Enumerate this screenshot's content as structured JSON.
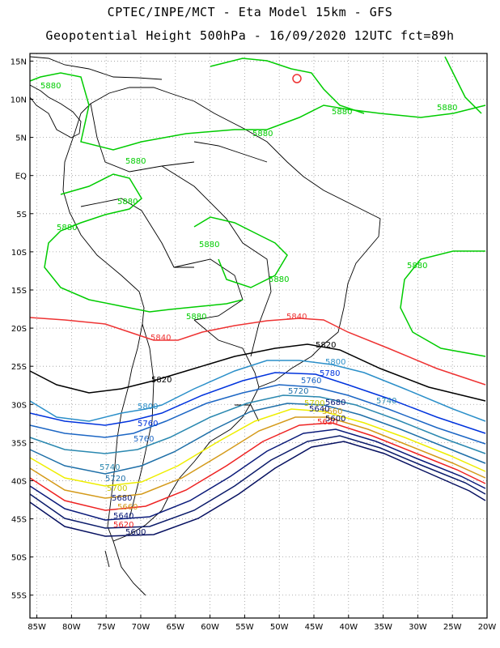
{
  "header": {
    "line1": "CPTEC/INPE/MCT -  Eta Model 15km - GFS",
    "line2": "Geopotential Height 500hPa - 16/09/2020 12UTC fct=89h"
  },
  "axes": {
    "lat_labels": [
      "15N",
      "10N",
      "5N",
      "EQ",
      "5S",
      "10S",
      "15S",
      "20S",
      "25S",
      "30S",
      "35S",
      "40S",
      "45S",
      "50S",
      "55S"
    ],
    "lat_values": [
      15,
      10,
      5,
      0,
      -5,
      -10,
      -15,
      -20,
      -25,
      -30,
      -35,
      -40,
      -45,
      -50,
      -55
    ],
    "lon_labels": [
      "85W",
      "80W",
      "75W",
      "70W",
      "65W",
      "60W",
      "55W",
      "50W",
      "45W",
      "40W",
      "35W",
      "30W",
      "25W",
      "20W"
    ],
    "lon_values": [
      -85,
      -80,
      -75,
      -70,
      -65,
      -60,
      -55,
      -50,
      -45,
      -40,
      -35,
      -30,
      -25,
      -20
    ],
    "lon_range": [
      -86,
      -20
    ],
    "lat_range": [
      -58,
      16
    ]
  },
  "contours": [
    {
      "value": "5880",
      "color": "#00cc00"
    },
    {
      "value": "5840",
      "color": "#ee3333"
    },
    {
      "value": "5820",
      "color": "#000000"
    },
    {
      "value": "5800",
      "color": "#2b8fc9"
    },
    {
      "value": "5780",
      "color": "#0033dd"
    },
    {
      "value": "5760",
      "color": "#1c66c4"
    },
    {
      "value": "5740",
      "color": "#2a88b0"
    },
    {
      "value": "5720",
      "color": "#1e6fa8"
    },
    {
      "value": "5700",
      "color": "#eeee00"
    },
    {
      "value": "5680",
      "color": "#d49a1a"
    },
    {
      "value": "5660",
      "color": "#ee2222"
    },
    {
      "value": "5640",
      "color": "#0b1b7a"
    },
    {
      "value": "5620",
      "color": "#0b1b6a"
    },
    {
      "value": "5600",
      "color": "#061060"
    }
  ],
  "labels": {
    "g1": "5880",
    "g2": "5880",
    "g3": "5880",
    "g4": "5880",
    "g5": "5880",
    "g6": "5880",
    "g7": "5880",
    "g8": "5880",
    "g9": "5880",
    "g10": "5880",
    "g11": "5880",
    "r1": "5840",
    "r2": "5840",
    "k1": "5820",
    "k2": "5820",
    "b1": "5800",
    "b2": "5800",
    "d1": "5780",
    "d2": "5760",
    "d3": "5760",
    "d4": "5760",
    "e1": "5740",
    "e2": "5740",
    "f1": "5720",
    "f2": "5720",
    "y1": "5700",
    "y2": "5700",
    "o1": "5680",
    "o2": "5680",
    "h1": "5660",
    "h2": "5660",
    "n1": "5640",
    "n2": "5640",
    "p1": "5620",
    "p2": "5620",
    "q1": "5600",
    "q2": "5600"
  },
  "colors": {
    "frame": "#000000",
    "grid": "#999999",
    "coast": "#000000",
    "high_marker": "#ee3333"
  }
}
